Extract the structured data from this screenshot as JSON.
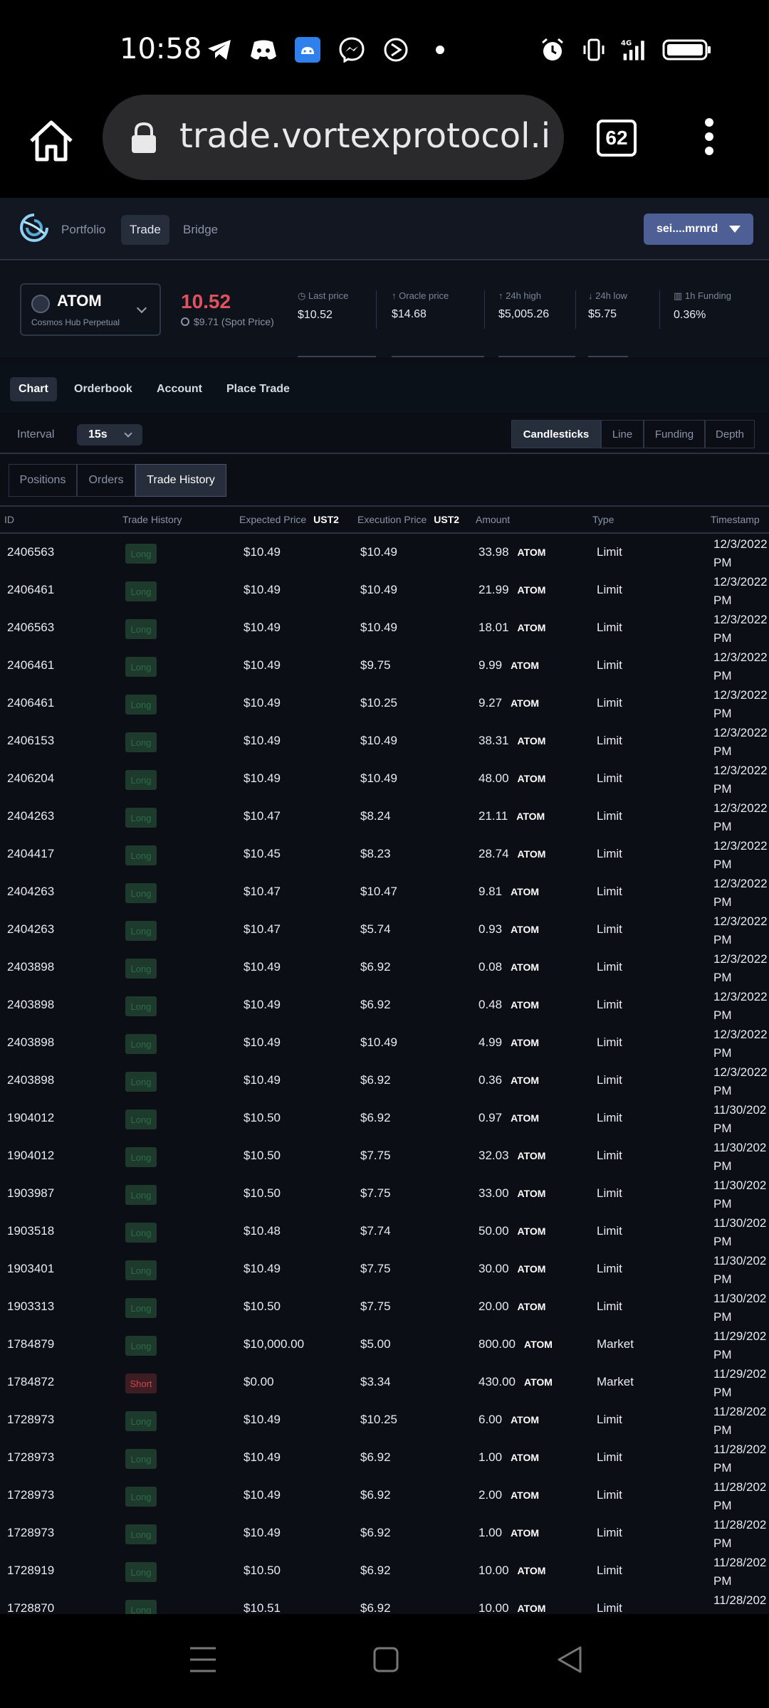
{
  "status_bar": {
    "time": "10:58"
  },
  "browser": {
    "url": "trade.vortexprotocol.io/t",
    "tab_count": "62"
  },
  "nav": {
    "items": [
      "Portfolio",
      "Trade",
      "Bridge"
    ],
    "active": "Trade",
    "wallet_label": "sei....mrnrd"
  },
  "market": {
    "symbol": "ATOM",
    "subtitle": "Cosmos Hub Perpetual",
    "price": "10.52",
    "spot_price": "$9.71 (Spot Price)",
    "stats": [
      {
        "label": "Last price",
        "value": "$10.52"
      },
      {
        "label": "Oracle price",
        "value": "$14.68"
      },
      {
        "label": "24h high",
        "value": "$5,005.26"
      },
      {
        "label": "24h low",
        "value": "$5.75"
      },
      {
        "label": "1h Funding",
        "value": "0.36%"
      }
    ]
  },
  "section_tabs": [
    "Chart",
    "Orderbook",
    "Account",
    "Place Trade"
  ],
  "interval": {
    "label": "Interval",
    "value": "15s"
  },
  "chart_types": [
    "Candlesticks",
    "Line",
    "Funding",
    "Depth"
  ],
  "sub_tabs": [
    "Positions",
    "Orders",
    "Trade History"
  ],
  "table": {
    "headers": {
      "id": "ID",
      "trade_history": "Trade History",
      "expected_price": "Expected Price",
      "execution_price": "Execution Price",
      "currency": "UST2",
      "amount": "Amount",
      "type": "Type",
      "timestamp": "Timestamp"
    },
    "rows": [
      {
        "id": "2406563",
        "side": "Long",
        "expected": "$10.49",
        "execution": "$10.49",
        "amount": "33.98",
        "asset": "ATOM",
        "type": "Limit",
        "date": "12/3/2022",
        "time": "PM"
      },
      {
        "id": "2406461",
        "side": "Long",
        "expected": "$10.49",
        "execution": "$10.49",
        "amount": "21.99",
        "asset": "ATOM",
        "type": "Limit",
        "date": "12/3/2022",
        "time": "PM"
      },
      {
        "id": "2406563",
        "side": "Long",
        "expected": "$10.49",
        "execution": "$10.49",
        "amount": "18.01",
        "asset": "ATOM",
        "type": "Limit",
        "date": "12/3/2022",
        "time": "PM"
      },
      {
        "id": "2406461",
        "side": "Long",
        "expected": "$10.49",
        "execution": "$9.75",
        "amount": "9.99",
        "asset": "ATOM",
        "type": "Limit",
        "date": "12/3/2022",
        "time": "PM"
      },
      {
        "id": "2406461",
        "side": "Long",
        "expected": "$10.49",
        "execution": "$10.25",
        "amount": "9.27",
        "asset": "ATOM",
        "type": "Limit",
        "date": "12/3/2022",
        "time": "PM"
      },
      {
        "id": "2406153",
        "side": "Long",
        "expected": "$10.49",
        "execution": "$10.49",
        "amount": "38.31",
        "asset": "ATOM",
        "type": "Limit",
        "date": "12/3/2022",
        "time": "PM"
      },
      {
        "id": "2406204",
        "side": "Long",
        "expected": "$10.49",
        "execution": "$10.49",
        "amount": "48.00",
        "asset": "ATOM",
        "type": "Limit",
        "date": "12/3/2022",
        "time": "PM"
      },
      {
        "id": "2404263",
        "side": "Long",
        "expected": "$10.47",
        "execution": "$8.24",
        "amount": "21.11",
        "asset": "ATOM",
        "type": "Limit",
        "date": "12/3/2022",
        "time": "PM"
      },
      {
        "id": "2404417",
        "side": "Long",
        "expected": "$10.45",
        "execution": "$8.23",
        "amount": "28.74",
        "asset": "ATOM",
        "type": "Limit",
        "date": "12/3/2022",
        "time": "PM"
      },
      {
        "id": "2404263",
        "side": "Long",
        "expected": "$10.47",
        "execution": "$10.47",
        "amount": "9.81",
        "asset": "ATOM",
        "type": "Limit",
        "date": "12/3/2022",
        "time": "PM"
      },
      {
        "id": "2404263",
        "side": "Long",
        "expected": "$10.47",
        "execution": "$5.74",
        "amount": "0.93",
        "asset": "ATOM",
        "type": "Limit",
        "date": "12/3/2022",
        "time": "PM"
      },
      {
        "id": "2403898",
        "side": "Long",
        "expected": "$10.49",
        "execution": "$6.92",
        "amount": "0.08",
        "asset": "ATOM",
        "type": "Limit",
        "date": "12/3/2022",
        "time": "PM"
      },
      {
        "id": "2403898",
        "side": "Long",
        "expected": "$10.49",
        "execution": "$6.92",
        "amount": "0.48",
        "asset": "ATOM",
        "type": "Limit",
        "date": "12/3/2022",
        "time": "PM"
      },
      {
        "id": "2403898",
        "side": "Long",
        "expected": "$10.49",
        "execution": "$10.49",
        "amount": "4.99",
        "asset": "ATOM",
        "type": "Limit",
        "date": "12/3/2022",
        "time": "PM"
      },
      {
        "id": "2403898",
        "side": "Long",
        "expected": "$10.49",
        "execution": "$6.92",
        "amount": "0.36",
        "asset": "ATOM",
        "type": "Limit",
        "date": "12/3/2022",
        "time": "PM"
      },
      {
        "id": "1904012",
        "side": "Long",
        "expected": "$10.50",
        "execution": "$6.92",
        "amount": "0.97",
        "asset": "ATOM",
        "type": "Limit",
        "date": "11/30/202",
        "time": "PM"
      },
      {
        "id": "1904012",
        "side": "Long",
        "expected": "$10.50",
        "execution": "$7.75",
        "amount": "32.03",
        "asset": "ATOM",
        "type": "Limit",
        "date": "11/30/202",
        "time": "PM"
      },
      {
        "id": "1903987",
        "side": "Long",
        "expected": "$10.50",
        "execution": "$7.75",
        "amount": "33.00",
        "asset": "ATOM",
        "type": "Limit",
        "date": "11/30/202",
        "time": "PM"
      },
      {
        "id": "1903518",
        "side": "Long",
        "expected": "$10.48",
        "execution": "$7.74",
        "amount": "50.00",
        "asset": "ATOM",
        "type": "Limit",
        "date": "11/30/202",
        "time": "PM"
      },
      {
        "id": "1903401",
        "side": "Long",
        "expected": "$10.49",
        "execution": "$7.75",
        "amount": "30.00",
        "asset": "ATOM",
        "type": "Limit",
        "date": "11/30/202",
        "time": "PM"
      },
      {
        "id": "1903313",
        "side": "Long",
        "expected": "$10.50",
        "execution": "$7.75",
        "amount": "20.00",
        "asset": "ATOM",
        "type": "Limit",
        "date": "11/30/202",
        "time": "PM"
      },
      {
        "id": "1784879",
        "side": "Long",
        "expected": "$10,000.00",
        "execution": "$5.00",
        "amount": "800.00",
        "asset": "ATOM",
        "type": "Market",
        "date": "11/29/202",
        "time": "PM"
      },
      {
        "id": "1784872",
        "side": "Short",
        "expected": "$0.00",
        "execution": "$3.34",
        "amount": "430.00",
        "asset": "ATOM",
        "type": "Market",
        "date": "11/29/202",
        "time": "PM"
      },
      {
        "id": "1728973",
        "side": "Long",
        "expected": "$10.49",
        "execution": "$10.25",
        "amount": "6.00",
        "asset": "ATOM",
        "type": "Limit",
        "date": "11/28/202",
        "time": "PM"
      },
      {
        "id": "1728973",
        "side": "Long",
        "expected": "$10.49",
        "execution": "$6.92",
        "amount": "1.00",
        "asset": "ATOM",
        "type": "Limit",
        "date": "11/28/202",
        "time": "PM"
      },
      {
        "id": "1728973",
        "side": "Long",
        "expected": "$10.49",
        "execution": "$6.92",
        "amount": "2.00",
        "asset": "ATOM",
        "type": "Limit",
        "date": "11/28/202",
        "time": "PM"
      },
      {
        "id": "1728973",
        "side": "Long",
        "expected": "$10.49",
        "execution": "$6.92",
        "amount": "1.00",
        "asset": "ATOM",
        "type": "Limit",
        "date": "11/28/202",
        "time": "PM"
      },
      {
        "id": "1728919",
        "side": "Long",
        "expected": "$10.50",
        "execution": "$6.92",
        "amount": "10.00",
        "asset": "ATOM",
        "type": "Limit",
        "date": "11/28/202",
        "time": "PM"
      },
      {
        "id": "1728870",
        "side": "Long",
        "expected": "$10.51",
        "execution": "$6.92",
        "amount": "10.00",
        "asset": "ATOM",
        "type": "Limit",
        "date": "11/28/202",
        "time": ""
      }
    ]
  },
  "colors": {
    "accent": "#4e5f96",
    "negative": "#e0525e",
    "long_badge": "#1d3a2c",
    "short_badge": "#3e1d22"
  }
}
